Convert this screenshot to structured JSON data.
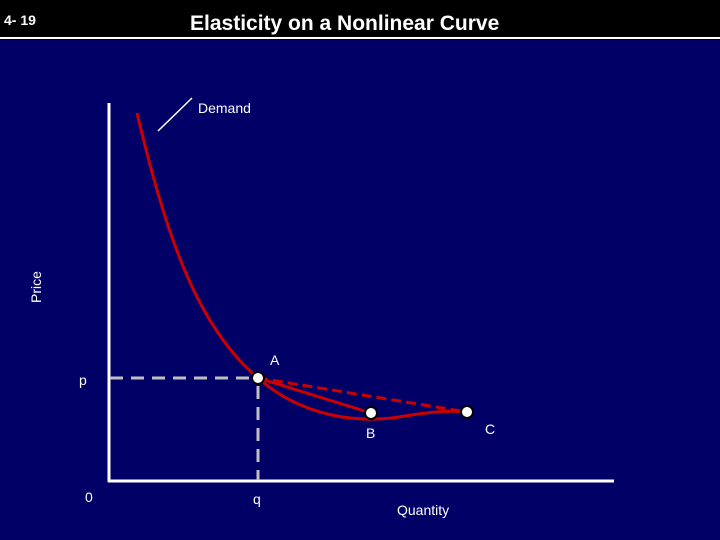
{
  "slide": {
    "number": "4- 19",
    "title": "Elasticity on a Nonlinear Curve"
  },
  "colors": {
    "background": "#000066",
    "curve": "#cc0000",
    "axes": "#ffffff",
    "guides": "#c0c0c0"
  },
  "diagram": {
    "curve_label": "Demand",
    "y_axis_label": "Price",
    "x_axis_label": "Quantity",
    "origin_label": "0",
    "price_label": "p",
    "quantity_label": "q",
    "points": {
      "a": "A",
      "b": "B",
      "c": "C"
    }
  }
}
